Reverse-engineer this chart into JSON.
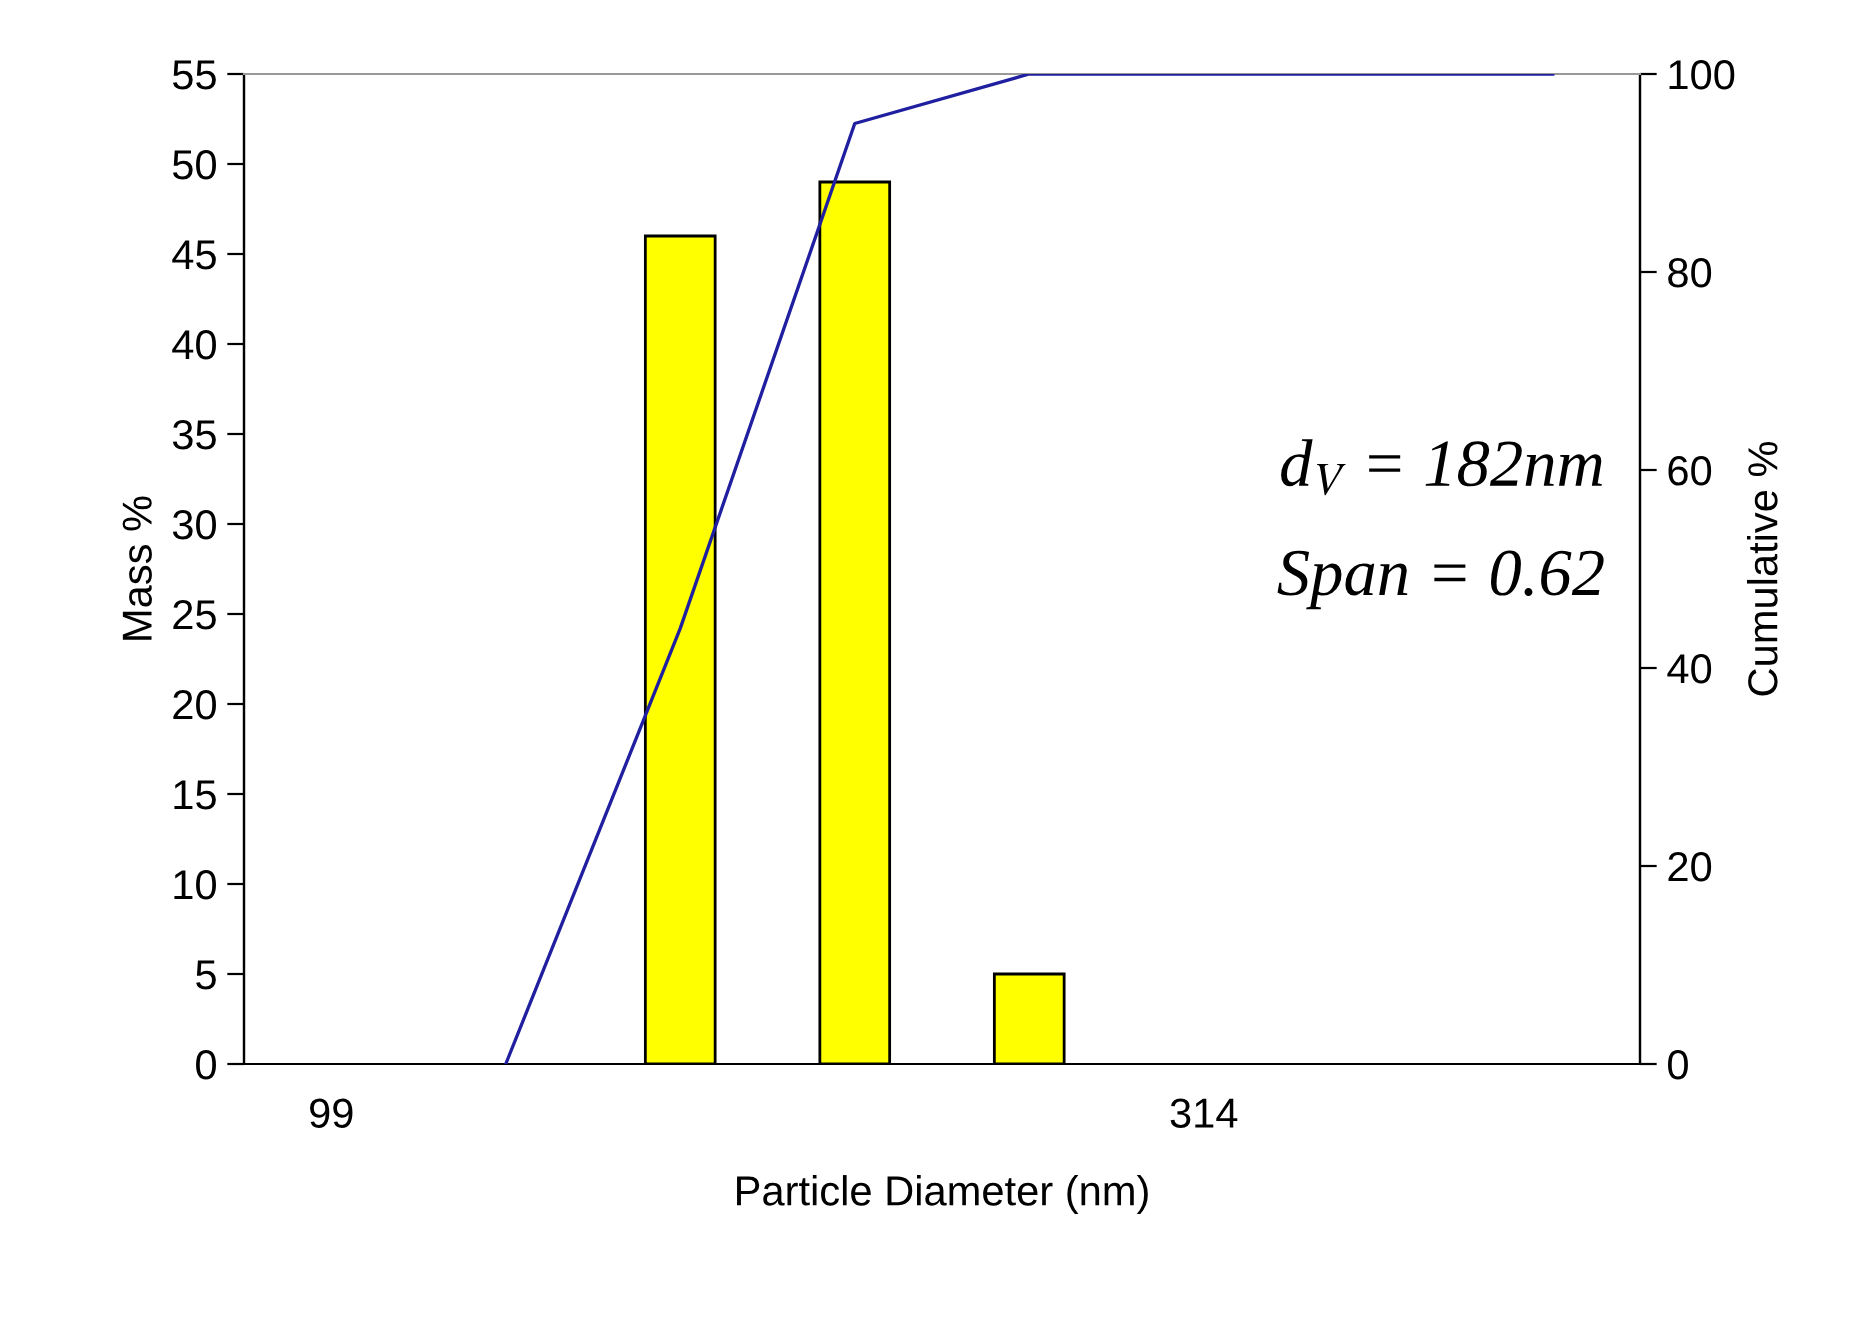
{
  "chart_data": {
    "type": "bar",
    "xlabel": "Particle Diameter (nm)",
    "ylabel": "Mass %",
    "y2label": "Cumulative %",
    "categories": [
      "99",
      null,
      null,
      null,
      null,
      "314",
      null,
      null
    ],
    "series": [
      {
        "color": "#ffff00",
        "values": [
          null,
          null,
          46,
          49,
          5,
          null,
          null,
          null
        ]
      },
      {
        "type": "line",
        "axis": "y2",
        "color": "#1f1fa0",
        "values": [
          null,
          0,
          44,
          95,
          100,
          100,
          100,
          100
        ]
      }
    ],
    "ylim": [
      0,
      55
    ],
    "yticks": [
      0,
      5,
      10,
      15,
      20,
      25,
      30,
      35,
      40,
      45,
      50,
      55
    ],
    "y2lim": [
      0,
      100
    ],
    "y2ticks": [
      0,
      20,
      40,
      60,
      80,
      100
    ],
    "grid": false,
    "legend": false,
    "marker": "none",
    "line_style": "solid",
    "annotations": [
      "d$_{V}$ = 182nm",
      "Span = 0.62"
    ]
  }
}
